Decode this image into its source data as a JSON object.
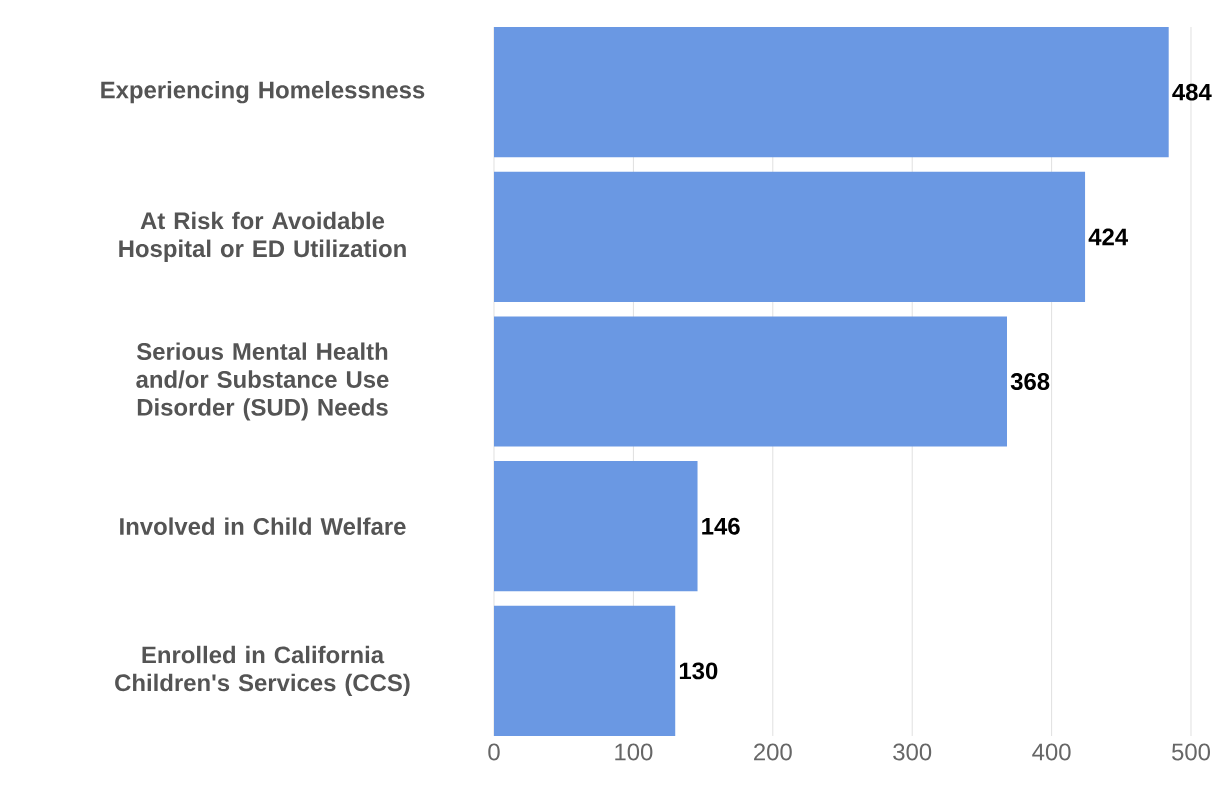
{
  "chart_data": {
    "type": "bar",
    "orientation": "horizontal",
    "categories": [
      "Experiencing Homelessness",
      "At Risk for Avoidable Hospital or ED Utilization",
      "Serious Mental Health and/or Substance Use Disorder (SUD) Needs",
      "Involved in Child Welfare",
      "Enrolled in California Children's Services (CCS)"
    ],
    "values": [
      484,
      424,
      368,
      146,
      130
    ],
    "color": "#6a98e3",
    "xlim": [
      0,
      500
    ],
    "xticks": [
      0,
      100,
      200,
      300,
      400,
      500
    ],
    "grid": "x",
    "data_labels": true
  }
}
